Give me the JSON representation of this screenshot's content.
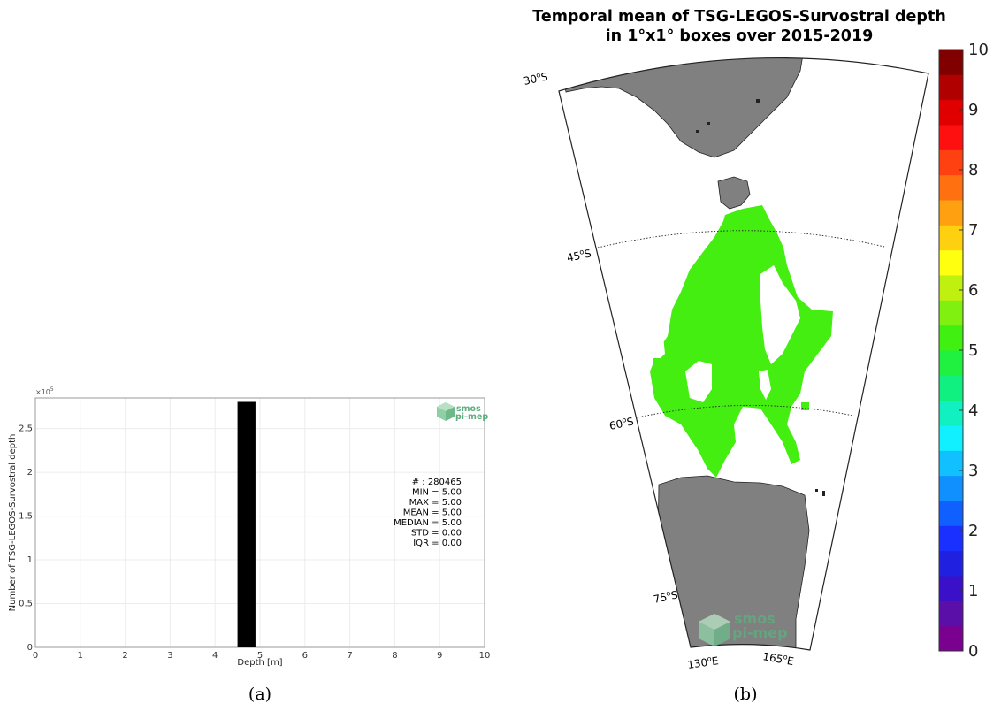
{
  "chart_data": [
    {
      "type": "bar",
      "panel": "(a)",
      "title": "",
      "xlabel": "Depth [m]",
      "ylabel": "Number of TSG-LEGOS-Survostral depth",
      "y_exponent_label": "×10",
      "y_exponent_power": "5",
      "xlim": [
        0,
        10
      ],
      "ylim": [
        0,
        2.85
      ],
      "x_ticks": [
        "0",
        "1",
        "2",
        "3",
        "4",
        "5",
        "6",
        "7",
        "8",
        "9",
        "10"
      ],
      "y_ticks": [
        {
          "value": 0,
          "label": "0"
        },
        {
          "value": 0.5,
          "label": "0.5"
        },
        {
          "value": 1,
          "label": "1"
        },
        {
          "value": 1.5,
          "label": "1.5"
        },
        {
          "value": 2,
          "label": "2"
        },
        {
          "value": 2.5,
          "label": "2.5"
        }
      ],
      "grid": true,
      "bars": [
        {
          "x_start": 4.5,
          "x_end": 4.9,
          "value": 2.80465
        }
      ],
      "bar_color": "#000000",
      "stats": [
        "# : 280465",
        "MIN = 5.00",
        "MAX =  5.00",
        "MEAN = 5.00",
        "MEDIAN = 5.00",
        "STD = 0.00",
        "IQR = 0.00"
      ],
      "watermark": [
        "smos",
        "pi-mep"
      ]
    },
    {
      "type": "heatmap",
      "panel": "(b)",
      "title_lines": [
        "Temporal mean of TSG-LEGOS-Survostral depth",
        "in 1°x1° boxes over 2015-2019"
      ],
      "latitude_labels": [
        {
          "deg": "30",
          "hem": "S"
        },
        {
          "deg": "45",
          "hem": "S"
        },
        {
          "deg": "60",
          "hem": "S"
        },
        {
          "deg": "75",
          "hem": "S"
        }
      ],
      "longitude_labels": [
        {
          "deg": "130",
          "hem": "E"
        },
        {
          "deg": "165",
          "hem": "E"
        }
      ],
      "colorbar": {
        "min": 0,
        "max": 10,
        "ticks": [
          "0",
          "1",
          "2",
          "3",
          "4",
          "5",
          "6",
          "7",
          "8",
          "9",
          "10"
        ],
        "colors": [
          "#7a0090",
          "#5a10a8",
          "#3a10c8",
          "#2020e0",
          "#1a30ff",
          "#1060ff",
          "#1090ff",
          "#10c0ff",
          "#10f0ff",
          "#10f0c0",
          "#10f080",
          "#20f040",
          "#40f010",
          "#80f010",
          "#c0f010",
          "#ffff10",
          "#ffd010",
          "#ffa010",
          "#ff7010",
          "#ff4010",
          "#ff1010",
          "#e00000",
          "#b00000",
          "#800000"
        ]
      },
      "field_value": 5.0,
      "field_color": "#44ee11",
      "land_color": "#808080",
      "watermark": [
        "smos",
        "pi-mep"
      ]
    }
  ],
  "captions": {
    "a": "(a)",
    "b": "(b)"
  }
}
